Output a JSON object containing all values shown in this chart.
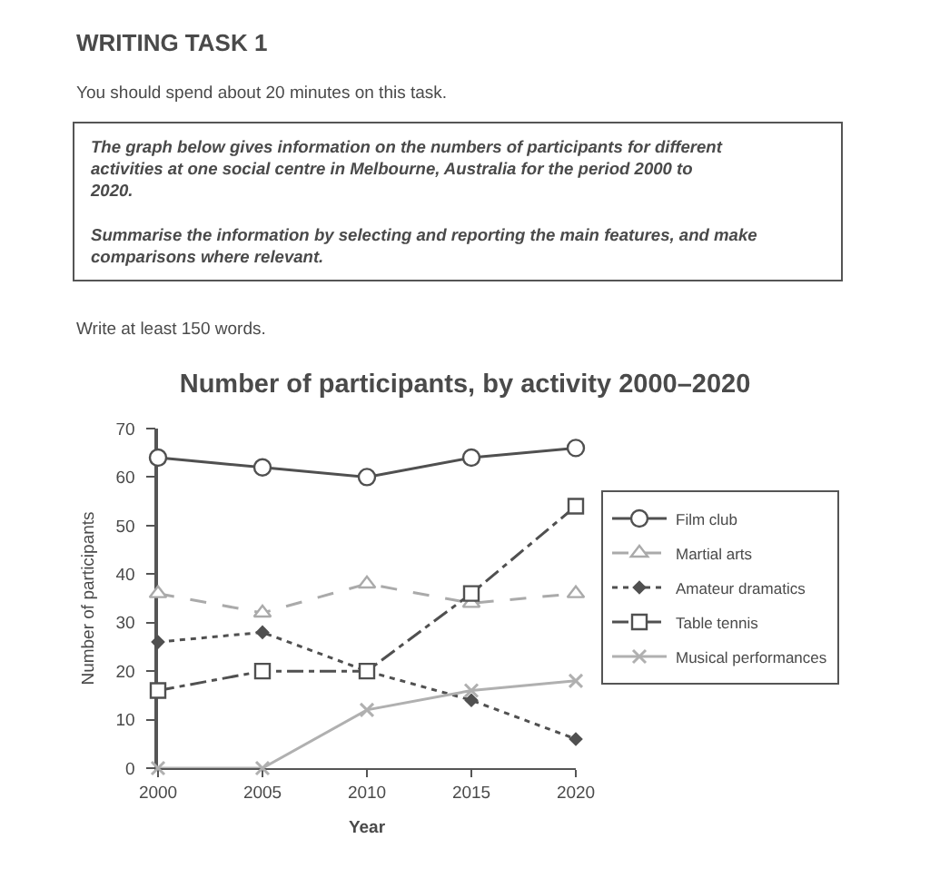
{
  "chart_data": {
    "type": "line",
    "title": "Number of participants, by activity 2000–2020",
    "xlabel": "Year",
    "ylabel": "Number of participants",
    "annotations": [
      "WRITING TASK 1",
      "You should spend about 20 minutes on this task.",
      "The graph below gives information on the numbers of participants for different activities at one social centre in Melbourne, Australia for the period 2000 to 2020.\n\nSummarise the information by selecting and reporting the main features, and make comparisons where relevant.",
      "Write at least 150 words."
    ],
    "x": [
      2000,
      2005,
      2010,
      2015,
      2020
    ],
    "xlim": [
      2000,
      2020
    ],
    "xticks": [
      2000,
      2005,
      2010,
      2015,
      2020
    ],
    "ylim": [
      0,
      70
    ],
    "yticks": [
      0,
      10,
      20,
      30,
      40,
      50,
      60,
      70
    ],
    "legend": "right",
    "series": [
      {
        "name": "Film club",
        "color": "#505050",
        "marker": "circle",
        "line_style": "solid",
        "values": [
          64,
          62,
          60,
          64,
          66
        ]
      },
      {
        "name": "Martial arts",
        "color": "#aaaaaa",
        "marker": "triangle",
        "line_style": "dashed",
        "values": [
          36,
          32,
          38,
          34,
          36
        ]
      },
      {
        "name": "Amateur dramatics",
        "color": "#505050",
        "marker": "diamond",
        "line_style": "dotted",
        "values": [
          26,
          28,
          20,
          14,
          6
        ]
      },
      {
        "name": "Table tennis",
        "color": "#505050",
        "marker": "square",
        "line_style": "dashdot",
        "values": [
          16,
          20,
          20,
          36,
          54
        ]
      },
      {
        "name": "Musical performances",
        "color": "#b0b0b0",
        "marker": "cross",
        "line_style": "solid",
        "values": [
          0,
          0,
          12,
          16,
          18
        ]
      }
    ]
  }
}
